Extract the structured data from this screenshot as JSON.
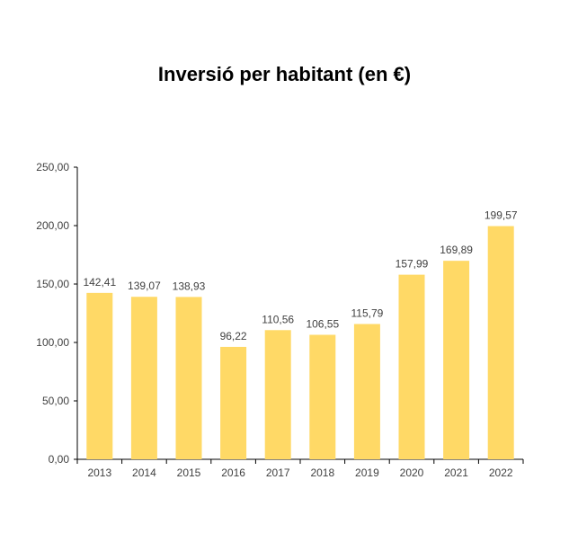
{
  "chart_data": {
    "type": "bar",
    "title": "Inversió per habitant (en €)",
    "xlabel": "",
    "ylabel": "",
    "categories": [
      "2013",
      "2014",
      "2015",
      "2016",
      "2017",
      "2018",
      "2019",
      "2020",
      "2021",
      "2022"
    ],
    "values": [
      142.41,
      139.07,
      138.93,
      96.22,
      110.56,
      106.55,
      115.79,
      157.99,
      169.89,
      199.57
    ],
    "data_labels": [
      "142,41",
      "139,07",
      "138,93",
      "96,22",
      "110,56",
      "106,55",
      "115,79",
      "157,99",
      "169,89",
      "199,57"
    ],
    "ylim": [
      0,
      250
    ],
    "yticks": [
      0,
      50,
      100,
      150,
      200,
      250
    ],
    "ytick_labels": [
      "0,00",
      "50,00",
      "100,00",
      "150,00",
      "200,00",
      "250,00"
    ],
    "grid": false,
    "legend": "none",
    "bar_color": "#FFD966"
  }
}
